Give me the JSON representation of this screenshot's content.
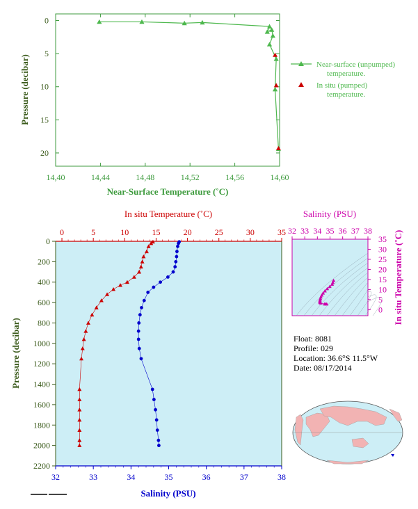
{
  "colors": {
    "surface": "#4db84d",
    "axis_green": "#3c9a3c",
    "label_green": "#2f7d2f",
    "pressure_text": "#3a5a1a",
    "temp_red": "#cc0000",
    "salinity_blue": "#0000cc",
    "magenta": "#cc00aa",
    "panel_bg": "#cdeef6"
  },
  "legend": {
    "item1_line1": "Near-surface (unpumped)",
    "item1_line2": "temperature.",
    "item2_line1": "In situ (pumped)",
    "item2_line2": "temperature."
  },
  "info": {
    "float": "Float:  8081",
    "profile": "Profile:  029",
    "location": "Location:  36.6°S  11.5°W",
    "date": "Date:  08/17/2014"
  },
  "chart_data": [
    {
      "id": "near_surface",
      "type": "line",
      "xlabel": "Near-Surface Temperature (˚C)",
      "ylabel": "Pressure (decibar)",
      "xlim": [
        14.4,
        14.6
      ],
      "ylim": [
        22,
        -1
      ],
      "x_ticks": [
        "14,40",
        "14,44",
        "14,48",
        "14,52",
        "14,56",
        "14,60"
      ],
      "x_tick_values": [
        14.4,
        14.44,
        14.48,
        14.52,
        14.56,
        14.6
      ],
      "y_ticks": [
        0,
        5,
        10,
        15,
        20
      ],
      "series": [
        {
          "name": "Near-surface (unpumped) temperature.",
          "marker": "triangle",
          "points": [
            [
              14.439,
              0.2
            ],
            [
              14.477,
              0.2
            ],
            [
              14.515,
              0.4
            ],
            [
              14.531,
              0.3
            ],
            [
              14.591,
              0.9
            ],
            [
              14.589,
              1.7
            ],
            [
              14.593,
              1.4
            ],
            [
              14.594,
              2.3
            ],
            [
              14.591,
              3.6
            ],
            [
              14.597,
              5.8
            ],
            [
              14.596,
              10.4
            ],
            [
              14.599,
              19.4
            ]
          ]
        },
        {
          "name": "In situ (pumped) temperature.",
          "marker": "triangle",
          "points": [
            [
              14.596,
              5.2
            ],
            [
              14.597,
              9.8
            ],
            [
              14.599,
              19.3
            ]
          ]
        }
      ]
    },
    {
      "id": "profile",
      "type": "line",
      "title_top": "In situ Temperature (˚C)",
      "xlabel": "Salinity (PSU)",
      "ylabel": "Pressure (decibar)",
      "ylim": [
        2200,
        0
      ],
      "y_ticks": [
        0,
        200,
        400,
        600,
        800,
        1000,
        1200,
        1400,
        1600,
        1800,
        2000,
        2200
      ],
      "temp_lim": [
        -1,
        35
      ],
      "temp_ticks": [
        0,
        5,
        10,
        15,
        20,
        25,
        30,
        35
      ],
      "sal_lim": [
        32,
        38
      ],
      "sal_ticks": [
        32,
        33,
        34,
        35,
        36,
        37,
        38
      ],
      "temperature": [
        [
          14.5,
          5
        ],
        [
          14.2,
          20
        ],
        [
          13.8,
          50
        ],
        [
          13.5,
          100
        ],
        [
          13.0,
          150
        ],
        [
          12.8,
          200
        ],
        [
          12.6,
          250
        ],
        [
          12.3,
          300
        ],
        [
          11.5,
          350
        ],
        [
          10.4,
          400
        ],
        [
          9.3,
          430
        ],
        [
          8.2,
          470
        ],
        [
          7.2,
          520
        ],
        [
          6.3,
          580
        ],
        [
          5.5,
          650
        ],
        [
          4.8,
          720
        ],
        [
          4.2,
          800
        ],
        [
          3.8,
          880
        ],
        [
          3.5,
          960
        ],
        [
          3.3,
          1050
        ],
        [
          3.1,
          1150
        ],
        [
          2.8,
          1450
        ],
        [
          2.8,
          1550
        ],
        [
          2.8,
          1650
        ],
        [
          2.8,
          1750
        ],
        [
          2.8,
          1850
        ],
        [
          2.8,
          1950
        ],
        [
          2.8,
          2000
        ]
      ],
      "salinity": [
        [
          35.28,
          5
        ],
        [
          35.26,
          20
        ],
        [
          35.24,
          50
        ],
        [
          35.22,
          100
        ],
        [
          35.21,
          150
        ],
        [
          35.19,
          200
        ],
        [
          35.17,
          250
        ],
        [
          35.12,
          300
        ],
        [
          34.98,
          350
        ],
        [
          34.78,
          400
        ],
        [
          34.6,
          450
        ],
        [
          34.45,
          500
        ],
        [
          34.35,
          580
        ],
        [
          34.28,
          650
        ],
        [
          34.24,
          720
        ],
        [
          34.21,
          800
        ],
        [
          34.2,
          880
        ],
        [
          34.2,
          960
        ],
        [
          34.22,
          1050
        ],
        [
          34.27,
          1150
        ],
        [
          34.57,
          1450
        ],
        [
          34.61,
          1550
        ],
        [
          34.65,
          1650
        ],
        [
          34.68,
          1750
        ],
        [
          34.7,
          1850
        ],
        [
          34.73,
          1950
        ],
        [
          34.74,
          2000
        ]
      ]
    },
    {
      "id": "ts_diagram",
      "type": "scatter",
      "xlabel": "Salinity (PSU)",
      "ylabel": "In situ Temperature (˚C)",
      "xlim": [
        32,
        38
      ],
      "ylim": [
        -3,
        35
      ],
      "x_ticks": [
        32,
        33,
        34,
        35,
        36,
        37,
        38
      ],
      "y_ticks": [
        0,
        5,
        10,
        15,
        20,
        25,
        30,
        35
      ],
      "points": [
        [
          35.28,
          14.5
        ],
        [
          35.22,
          13.5
        ],
        [
          35.17,
          12.6
        ],
        [
          34.98,
          11.5
        ],
        [
          34.78,
          10.4
        ],
        [
          34.6,
          9.3
        ],
        [
          34.45,
          8.2
        ],
        [
          34.35,
          7.2
        ],
        [
          34.28,
          6.3
        ],
        [
          34.24,
          5.5
        ],
        [
          34.21,
          4.8
        ],
        [
          34.2,
          4.2
        ],
        [
          34.2,
          3.8
        ],
        [
          34.22,
          3.5
        ],
        [
          34.27,
          3.3
        ],
        [
          34.57,
          2.8
        ],
        [
          34.65,
          2.8
        ],
        [
          34.74,
          2.8
        ]
      ]
    }
  ]
}
